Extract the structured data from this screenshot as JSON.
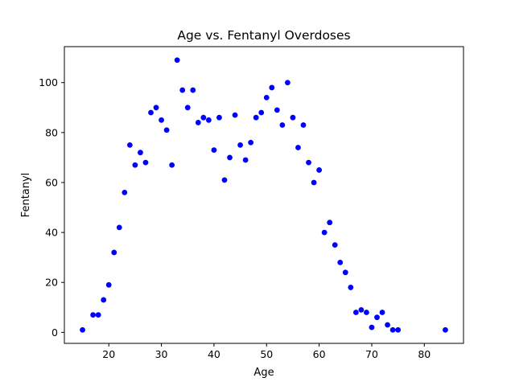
{
  "chart_data": {
    "type": "scatter",
    "title": "Age vs. Fentanyl Overdoses",
    "xlabel": "Age",
    "ylabel": "Fentanyl",
    "xlim": [
      11.55,
      87.45
    ],
    "ylim": [
      -4.4,
      114.4
    ],
    "xticks": [
      20,
      30,
      40,
      50,
      60,
      70,
      80
    ],
    "yticks": [
      0,
      20,
      40,
      60,
      80,
      100
    ],
    "grid": false,
    "legend": "none",
    "marker_color": "#0000ff",
    "x": [
      15,
      17,
      18,
      19,
      20,
      21,
      22,
      23,
      24,
      25,
      26,
      27,
      28,
      29,
      30,
      31,
      32,
      33,
      34,
      35,
      36,
      37,
      38,
      39,
      40,
      41,
      42,
      43,
      44,
      45,
      46,
      47,
      48,
      49,
      50,
      51,
      52,
      53,
      54,
      55,
      56,
      57,
      58,
      59,
      60,
      61,
      62,
      63,
      64,
      65,
      66,
      67,
      68,
      69,
      70,
      71,
      72,
      73,
      74,
      75,
      84
    ],
    "y": [
      1,
      7,
      7,
      13,
      19,
      32,
      42,
      56,
      75,
      67,
      72,
      68,
      88,
      90,
      85,
      81,
      67,
      109,
      97,
      90,
      97,
      84,
      86,
      85,
      73,
      86,
      61,
      70,
      87,
      75,
      69,
      76,
      86,
      88,
      94,
      98,
      89,
      83,
      100,
      86,
      74,
      83,
      68,
      60,
      65,
      40,
      44,
      35,
      28,
      24,
      18,
      8,
      9,
      8,
      2,
      6,
      8,
      3,
      1,
      1,
      1
    ]
  }
}
